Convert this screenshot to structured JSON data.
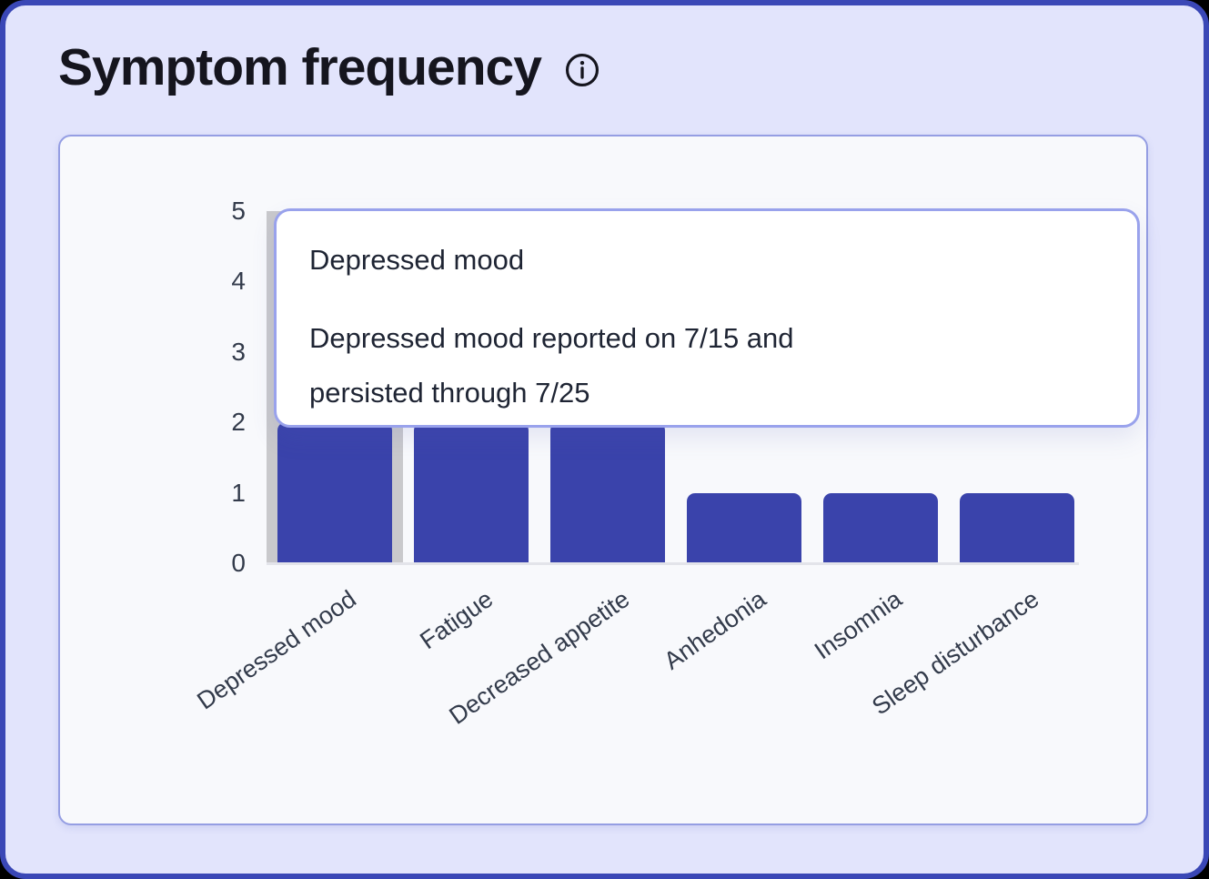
{
  "page": {
    "title": "Symptom frequency"
  },
  "colors": {
    "canvas_border": "#3a47b6",
    "page_background": "#e2e4fc",
    "card_background": "#f8f9fc",
    "card_border": "#959ee3",
    "bar_color": "#3a43ab",
    "hover_band": "#c9c9cc",
    "axis_line": "#e3e4ea",
    "tick_text": "#333b4b",
    "title_text": "#15151e",
    "tooltip_background": "#ffffff",
    "tooltip_border": "#99a2ec",
    "tooltip_text": "#1e2433"
  },
  "chart_data": {
    "type": "bar",
    "title": "Symptom frequency",
    "categories": [
      "Depressed mood",
      "Fatigue",
      "Decreased appetite",
      "Anhedonia",
      "Insomnia",
      "Sleep disturbance"
    ],
    "values": [
      2,
      2,
      2,
      1,
      1,
      1
    ],
    "xlabel": "",
    "ylabel": "",
    "ylim": [
      0,
      5
    ],
    "yticks": [
      0,
      1,
      2,
      3,
      4,
      5
    ],
    "grid": false,
    "legend": false,
    "x_tick_rotation_deg": -35,
    "hovered_index": 0,
    "tooltip": {
      "title": "Depressed mood",
      "body_lines": [
        "Depressed mood reported on 7/15 and",
        "persisted through 7/25"
      ]
    }
  }
}
